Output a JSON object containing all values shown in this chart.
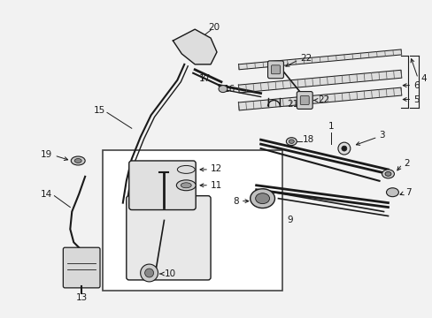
{
  "bg": "#f2f2f2",
  "fg": "#1a1a1a",
  "white": "#ffffff",
  "gray1": "#aaaaaa",
  "gray2": "#cccccc",
  "gray3": "#e0e0e0",
  "figsize": [
    4.89,
    3.6
  ],
  "dpi": 100,
  "lw_main": 1.0,
  "lw_thin": 0.6,
  "lw_thick": 1.5,
  "fs_label": 7.5
}
